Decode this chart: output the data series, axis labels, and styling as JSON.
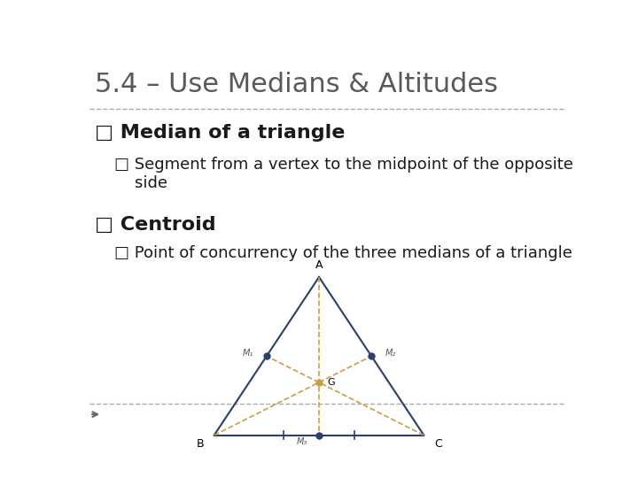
{
  "title": "5.4 – Use Medians & Altitudes",
  "bg_color": "#ffffff",
  "title_color": "#595959",
  "title_fontsize": 22,
  "bullet1_text": "□ Median of a triangle",
  "bullet1_fontsize": 16,
  "bullet2_text": "□ Segment from a vertex to the midpoint of the opposite\n    side",
  "bullet2_fontsize": 13,
  "bullet3_text": "□ Centroid",
  "bullet3_fontsize": 16,
  "bullet4_text": "□ Point of concurrency of the three medians of a triangle",
  "bullet4_fontsize": 13,
  "triangle": {
    "A": [
      0.5,
      1.0
    ],
    "B": [
      0.0,
      0.0
    ],
    "C": [
      1.0,
      0.0
    ],
    "triangle_color": "#2c3e6b",
    "median_color": "#c8a040"
  },
  "line_color": "#aaaaaa",
  "arrow_color": "#666666"
}
